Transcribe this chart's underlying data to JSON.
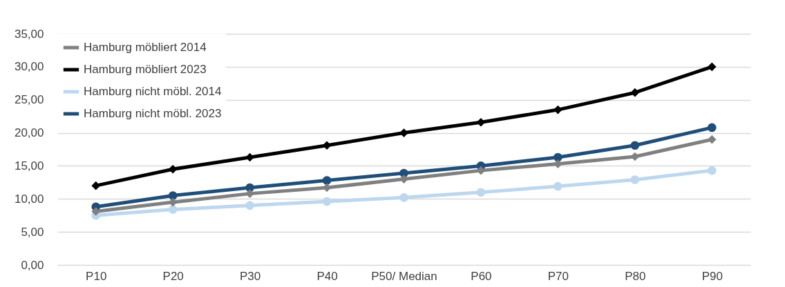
{
  "chart_data": {
    "type": "line",
    "categories": [
      "P10",
      "P20",
      "P30",
      "P40",
      "P50/ Median",
      "P60",
      "P70",
      "P80",
      "P90"
    ],
    "series": [
      {
        "name": "Hamburg möbliert 2014",
        "color": "#808080",
        "marker": "diamond",
        "values": [
          8.1,
          9.5,
          10.8,
          11.7,
          13.0,
          14.3,
          15.3,
          16.4,
          19.0
        ]
      },
      {
        "name": "Hamburg möbliert 2023",
        "color": "#000000",
        "marker": "diamond",
        "values": [
          12.0,
          14.5,
          16.3,
          18.1,
          20.0,
          21.6,
          23.5,
          26.1,
          30.0
        ]
      },
      {
        "name": "Hamburg nicht möbl. 2014",
        "color": "#bdd7ee",
        "marker": "circle",
        "values": [
          7.5,
          8.4,
          9.0,
          9.6,
          10.2,
          11.0,
          11.9,
          12.9,
          14.3
        ]
      },
      {
        "name": "Hamburg nicht möbl. 2023",
        "color": "#1f4e79",
        "marker": "circle",
        "values": [
          8.8,
          10.5,
          11.7,
          12.8,
          13.9,
          15.0,
          16.3,
          18.1,
          20.8
        ]
      }
    ],
    "ylim": [
      0,
      35
    ],
    "yticks": [
      {
        "value": 0,
        "label": "0,00"
      },
      {
        "value": 5,
        "label": "5,00"
      },
      {
        "value": 10,
        "label": "10,00"
      },
      {
        "value": 15,
        "label": "15,00"
      },
      {
        "value": 20,
        "label": "20,00"
      },
      {
        "value": 25,
        "label": "25,00"
      },
      {
        "value": 30,
        "label": "30,00"
      },
      {
        "value": 35,
        "label": "35,00"
      }
    ],
    "grid": "y",
    "legend": "top left",
    "line_style": "solid"
  }
}
